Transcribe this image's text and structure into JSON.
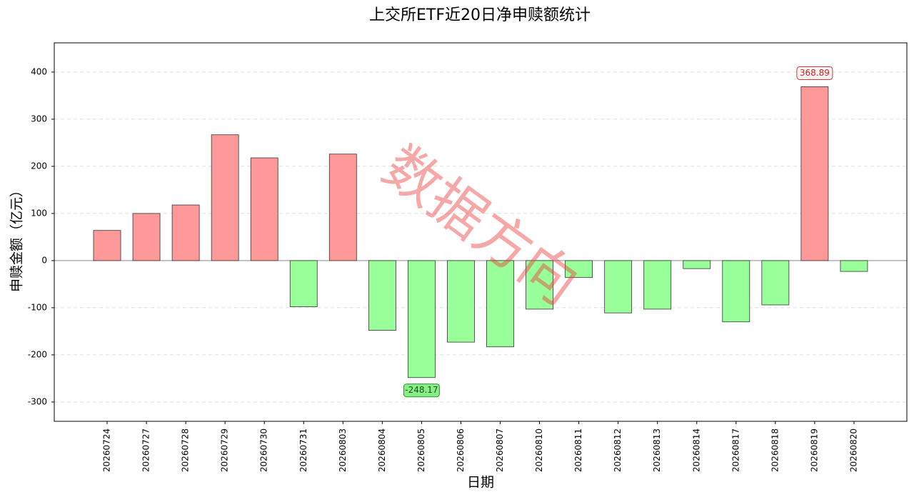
{
  "chart_data": {
    "type": "bar",
    "title": "上交所ETF近20日净申赎额统计",
    "x_label": "日期",
    "y_label": "申赎金额（亿元）",
    "watermark": "数据方向",
    "categories": [
      "20260724",
      "20260727",
      "20260728",
      "20260729",
      "20260730",
      "20260731",
      "20260803",
      "20260804",
      "20260805",
      "20260806",
      "20260807",
      "20260810",
      "20260811",
      "20260812",
      "20260813",
      "20260814",
      "20260817",
      "20260818",
      "20260819",
      "20260820"
    ],
    "values": [
      64,
      100,
      118,
      267,
      218,
      -98,
      226,
      -148,
      -248.17,
      -173,
      -183,
      -103,
      -36,
      -111,
      -103,
      -17,
      -130,
      -94,
      368.89,
      -23
    ],
    "value_labels": [
      null,
      null,
      null,
      null,
      null,
      null,
      null,
      null,
      "-248.17",
      null,
      null,
      null,
      null,
      null,
      null,
      null,
      null,
      null,
      "368.89",
      null
    ],
    "positive_color": "#ff9999",
    "negative_color": "#99ff99",
    "ylim": [
      -341,
      462
    ],
    "yticks": [
      -300,
      -200,
      -100,
      0,
      100,
      200,
      300,
      400
    ],
    "grid": true
  }
}
